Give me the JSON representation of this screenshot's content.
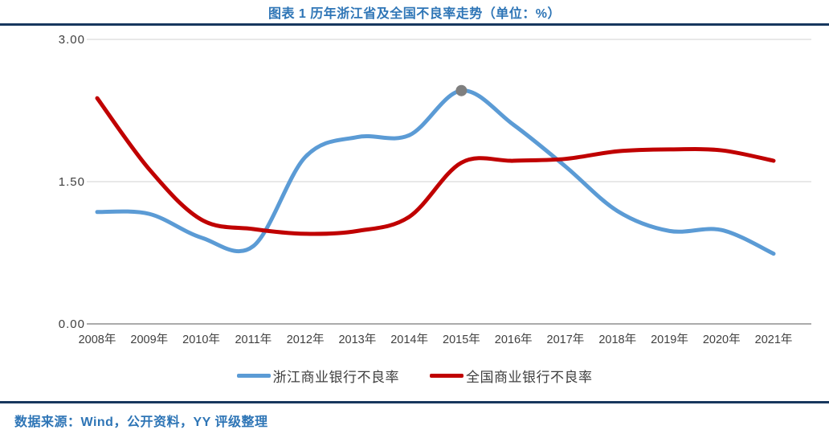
{
  "header": {
    "title": "图表 1 历年浙江省及全国不良率走势（单位：%）"
  },
  "chart_data": {
    "type": "line",
    "title": "图表 1 历年浙江省及全国不良率走势（单位：%）",
    "smooth": true,
    "grid": "horizontal",
    "legend_position": "bottom",
    "categories": [
      "2008年",
      "2009年",
      "2010年",
      "2011年",
      "2012年",
      "2013年",
      "2014年",
      "2015年",
      "2016年",
      "2017年",
      "2018年",
      "2019年",
      "2020年",
      "2021年"
    ],
    "series": [
      {
        "id": "zhejiang-commercial-banks-npl",
        "name": "浙江商业银行不良率",
        "color": "#5B9BD5",
        "values": [
          1.18,
          1.16,
          0.91,
          0.82,
          1.76,
          1.97,
          1.99,
          2.46,
          2.1,
          1.66,
          1.19,
          0.98,
          0.99,
          0.74
        ],
        "marker": {
          "index": 7,
          "color": "#7F7F7F"
        }
      },
      {
        "id": "national-commercial-banks-npl",
        "name": "全国商业银行不良率",
        "color": "#C00000",
        "values": [
          2.38,
          1.63,
          1.1,
          1.0,
          0.95,
          0.98,
          1.13,
          1.7,
          1.72,
          1.74,
          1.82,
          1.84,
          1.83,
          1.72
        ]
      }
    ],
    "ylim": [
      0,
      3
    ],
    "yticks": [
      0,
      1.5,
      3
    ],
    "ytick_labels": [
      "0.00",
      "1.50",
      "3.00"
    ],
    "xlabel": "",
    "ylabel": ""
  },
  "footer": {
    "source": "数据来源：Wind，公开资料，YY 评级整理"
  },
  "colors": {
    "title_blue": "#2E75B6",
    "rule_navy": "#17375E",
    "gridline": "#D9D9D9",
    "axis_line": "#ABABAB",
    "tick_text": "#3F3F3F"
  }
}
